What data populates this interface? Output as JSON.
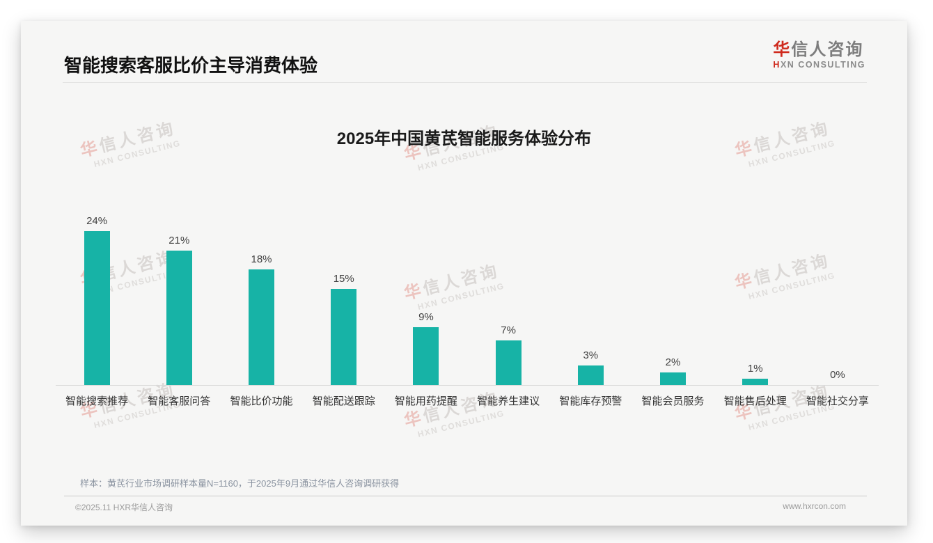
{
  "header": {
    "title": "智能搜索客服比价主导消费体验",
    "logo": {
      "zh_first": "华",
      "zh_rest": "信人咨询",
      "en_first": "H",
      "en_rest": "XN CONSULTING"
    }
  },
  "chart_data": {
    "type": "bar",
    "title": "2025年中国黄芪智能服务体验分布",
    "categories": [
      "智能搜索推荐",
      "智能客服问答",
      "智能比价功能",
      "智能配送跟踪",
      "智能用药提醒",
      "智能养生建议",
      "智能库存预警",
      "智能会员服务",
      "智能售后处理",
      "智能社交分享"
    ],
    "values": [
      24,
      21,
      18,
      15,
      9,
      7,
      3,
      2,
      1,
      0
    ],
    "unit": "%",
    "xlabel": "",
    "ylabel": "",
    "ylim": [
      0,
      26
    ],
    "grid": false,
    "legend": "none",
    "bar_color": "#17b3a6"
  },
  "watermark": {
    "zh_first": "华",
    "zh_rest": "信人咨询",
    "en": "HXN CONSULTING"
  },
  "footnote": "样本：黄芪行业市场调研样本量N=1160，于2025年9月通过华信人咨询调研获得",
  "footer": {
    "left": "©2025.11 HXR华信人咨询",
    "right": "www.hxrcon.com"
  },
  "colors": {
    "bar": "#17b3a6",
    "accent_red": "#cf2a1d",
    "axis_line": "#d8d8d8",
    "note_text": "#8a93a0",
    "footer_text": "#9b9b9b"
  }
}
